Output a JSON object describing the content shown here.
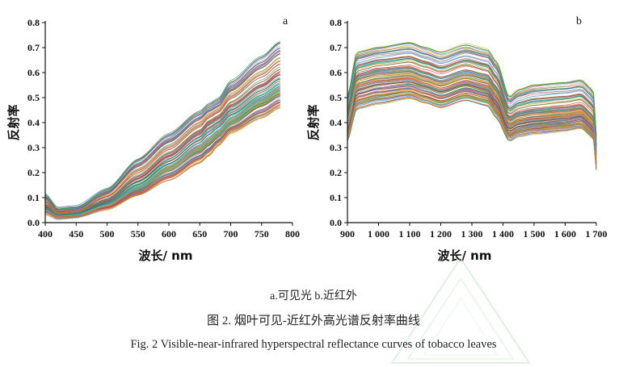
{
  "figure": {
    "sub_caption": "a.可见光   b.近红外",
    "cn_caption": "图 2.  烟叶可见-近红外高光谱反射率曲线",
    "en_caption": "Fig. 2  Visible-near-infrared hyperspectral reflectance curves of tobacco leaves"
  },
  "chart_data": [
    {
      "type": "line",
      "panel_label": "a",
      "xlabel": "波长/ nm",
      "ylabel": "反射率",
      "xlim": [
        400,
        800
      ],
      "ylim": [
        0,
        0.8
      ],
      "x_ticks": [
        "400",
        "450",
        "500",
        "550",
        "600",
        "650",
        "700",
        "750",
        "800"
      ],
      "y_ticks": [
        "0.0",
        "0.1",
        "0.2",
        "0.3",
        "0.4",
        "0.5",
        "0.6",
        "0.7",
        "0.8"
      ],
      "x": [
        400,
        420,
        450,
        500,
        550,
        600,
        650,
        665,
        680,
        700,
        750,
        780
      ],
      "series": [
        {
          "values": [
            0.11,
            0.055,
            0.06,
            0.13,
            0.25,
            0.35,
            0.44,
            0.47,
            0.49,
            0.56,
            0.66,
            0.72
          ]
        },
        {
          "values": [
            0.07,
            0.035,
            0.04,
            0.09,
            0.18,
            0.27,
            0.36,
            0.4,
            0.42,
            0.47,
            0.55,
            0.6
          ]
        },
        {
          "values": [
            0.05,
            0.025,
            0.03,
            0.07,
            0.14,
            0.22,
            0.3,
            0.33,
            0.36,
            0.41,
            0.49,
            0.53
          ]
        },
        {
          "values": [
            0.04,
            0.02,
            0.025,
            0.055,
            0.11,
            0.17,
            0.24,
            0.27,
            0.31,
            0.36,
            0.42,
            0.46
          ]
        }
      ]
    },
    {
      "type": "line",
      "panel_label": "b",
      "xlabel": "波长/ nm",
      "ylabel": "反射率",
      "xlim": [
        900,
        1700
      ],
      "ylim": [
        0,
        0.8
      ],
      "x_ticks": [
        "900",
        "1 000",
        "1 100",
        "1 200",
        "1 300",
        "1 400",
        "1 500",
        "1 600",
        "1 700"
      ],
      "y_ticks": [
        "0.0",
        "0.1",
        "0.2",
        "0.3",
        "0.4",
        "0.5",
        "0.6",
        "0.7",
        "0.8"
      ],
      "x": [
        900,
        930,
        1000,
        1100,
        1150,
        1200,
        1280,
        1350,
        1380,
        1420,
        1450,
        1500,
        1600,
        1650,
        1690,
        1700
      ],
      "series": [
        {
          "values": [
            0.5,
            0.68,
            0.7,
            0.72,
            0.7,
            0.68,
            0.71,
            0.69,
            0.64,
            0.5,
            0.53,
            0.55,
            0.56,
            0.57,
            0.53,
            0.35
          ]
        },
        {
          "values": [
            0.43,
            0.59,
            0.61,
            0.62,
            0.6,
            0.58,
            0.61,
            0.59,
            0.54,
            0.42,
            0.44,
            0.45,
            0.46,
            0.47,
            0.43,
            0.28
          ]
        },
        {
          "values": [
            0.38,
            0.54,
            0.56,
            0.57,
            0.55,
            0.53,
            0.56,
            0.54,
            0.49,
            0.38,
            0.4,
            0.41,
            0.42,
            0.43,
            0.39,
            0.25
          ]
        },
        {
          "values": [
            0.33,
            0.46,
            0.48,
            0.5,
            0.48,
            0.46,
            0.49,
            0.47,
            0.42,
            0.33,
            0.35,
            0.36,
            0.37,
            0.38,
            0.34,
            0.21
          ]
        }
      ]
    }
  ]
}
